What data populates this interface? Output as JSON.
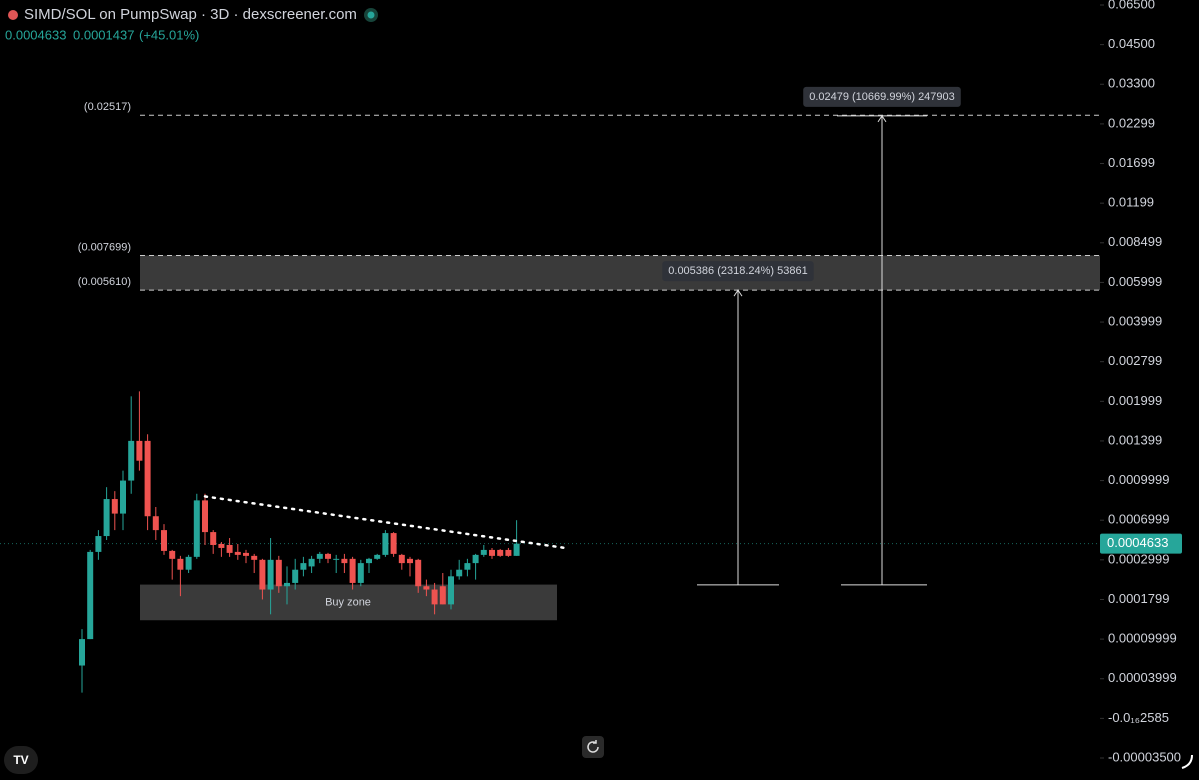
{
  "header": {
    "title": "SIMD/SOL on PumpSwap · 3D · dexscreener.com",
    "last": "0.0004633",
    "change": "0.0001437",
    "change_pct": "(+45.01%)"
  },
  "chart_data": {
    "type": "candlestick",
    "up_color": "#26a69a",
    "down_color": "#ef5350",
    "open": [
      6e-05,
      0.0001,
      0.00038,
      0.00054,
      0.00086,
      0.00075,
      0.001,
      0.0014,
      0.0014,
      0.00073,
      0.0006,
      0.00039,
      0.00031,
      0.00027,
      0.00033,
      0.00085,
      0.00058,
      0.00046,
      0.00045,
      0.00038,
      0.00037,
      0.00034,
      0.0003,
      0.00021,
      0.0003,
      0.00022,
      0.00023,
      0.00027,
      0.00028,
      0.00031,
      0.00036,
      0.0003,
      0.00031,
      0.00031,
      0.00023,
      0.00029,
      0.00031,
      0.00035,
      0.00057,
      0.00035,
      0.00031,
      0.0003,
      0.00022,
      0.00021,
      0.00022,
      0.00017,
      0.00025,
      0.00027,
      0.00029,
      0.00035,
      0.0004,
      0.0004,
      0.0004,
      0.00034
    ],
    "high": [
      0.00012,
      0.0004,
      0.0006,
      0.00095,
      0.00092,
      0.0011,
      0.0021,
      0.0022,
      0.0015,
      0.0008,
      0.00066,
      0.0004,
      0.00034,
      0.00035,
      0.0009,
      0.0009,
      0.0006,
      0.00048,
      0.00052,
      0.00046,
      0.0004,
      0.00036,
      0.00031,
      0.00052,
      0.00034,
      0.00028,
      0.00031,
      0.00033,
      0.00034,
      0.00038,
      0.00037,
      0.00035,
      0.00036,
      0.00033,
      0.0003,
      0.00032,
      0.00036,
      0.0006,
      0.00058,
      0.00036,
      0.00033,
      0.00031,
      0.00024,
      0.00023,
      0.00026,
      0.00027,
      0.0003,
      0.00031,
      0.00036,
      0.00045,
      0.00042,
      0.00041,
      0.00042,
      0.0007
    ],
    "low": [
      2.6e-05,
      0.0001,
      0.0003,
      0.0005,
      0.0006,
      0.0006,
      0.0009,
      0.0011,
      0.0006,
      0.0005,
      0.00035,
      0.00024,
      0.00019,
      0.00026,
      0.00031,
      0.00045,
      0.00036,
      0.00033,
      0.00033,
      0.0003,
      0.00029,
      0.00026,
      0.00018,
      0.00015,
      0.0002,
      0.00017,
      0.00021,
      0.00025,
      0.00026,
      0.00029,
      0.00029,
      0.00026,
      0.00026,
      0.00021,
      0.00022,
      0.00026,
      0.0003,
      0.00033,
      0.00033,
      0.00027,
      0.00025,
      0.0002,
      0.00019,
      0.00015,
      0.00017,
      0.00016,
      0.00024,
      0.00025,
      0.00024,
      0.00033,
      0.00031,
      0.00033,
      0.00033,
      0.00034
    ],
    "close": [
      0.0001,
      0.00038,
      0.00054,
      0.00086,
      0.00075,
      0.001,
      0.0014,
      0.0012,
      0.00073,
      0.0006,
      0.00039,
      0.00031,
      0.00027,
      0.00033,
      0.00085,
      0.00058,
      0.00045,
      0.00042,
      0.00037,
      0.00035,
      0.00034,
      0.0003,
      0.00021,
      0.0003,
      0.00022,
      0.00023,
      0.00027,
      0.00029,
      0.00031,
      0.00036,
      0.00031,
      0.00031,
      0.00029,
      0.00023,
      0.00029,
      0.00031,
      0.00035,
      0.00057,
      0.00036,
      0.00029,
      0.00029,
      0.00022,
      0.00021,
      0.00017,
      0.00017,
      0.00025,
      0.00027,
      0.00029,
      0.00035,
      0.0004,
      0.00034,
      0.00034,
      0.00034,
      0.0004633
    ],
    "ylim": [
      -3.5e-05,
      0.065
    ],
    "yticks": [
      {
        "value": -3.5e-05,
        "label": "-0.00003500"
      },
      {
        "value": -2.585e-17,
        "label": "-0.0₁₆2585"
      },
      {
        "value": 3.999e-05,
        "label": "0.00003999"
      },
      {
        "value": 9.999e-05,
        "label": "0.00009999"
      },
      0.0001799,
      0.0002999,
      0.0006999,
      0.0009999,
      0.001399,
      0.001999,
      0.002799,
      0.003999,
      0.005999,
      0.008499,
      0.01199,
      0.01699,
      0.02299,
      {
        "value": 0.033,
        "label": "0.03300"
      },
      {
        "value": 0.045,
        "label": "0.04500"
      },
      {
        "value": 0.065,
        "label": "0.06500"
      }
    ],
    "current_price": {
      "value": 0.0004633,
      "label": "0.0004633"
    },
    "levels": [
      {
        "value": 0.02517,
        "label": "(0.02517)"
      },
      {
        "value": 0.007699,
        "label": "(0.007699)"
      },
      {
        "value": 0.00561,
        "label": "(0.005610)"
      }
    ],
    "measures": [
      {
        "label": "0.005386 (2318.24%) 53861",
        "from": 0.000224,
        "to": 0.00561
      },
      {
        "label": "0.02479 (10669.99%) 247903",
        "from": 0.000224,
        "to": 0.025014
      }
    ],
    "buy_zone": {
      "label": "Buy zone",
      "top": 0.000225,
      "bottom": 0.000138
    },
    "trendline": {
      "start": 0.00088,
      "end": 0.00042
    }
  }
}
